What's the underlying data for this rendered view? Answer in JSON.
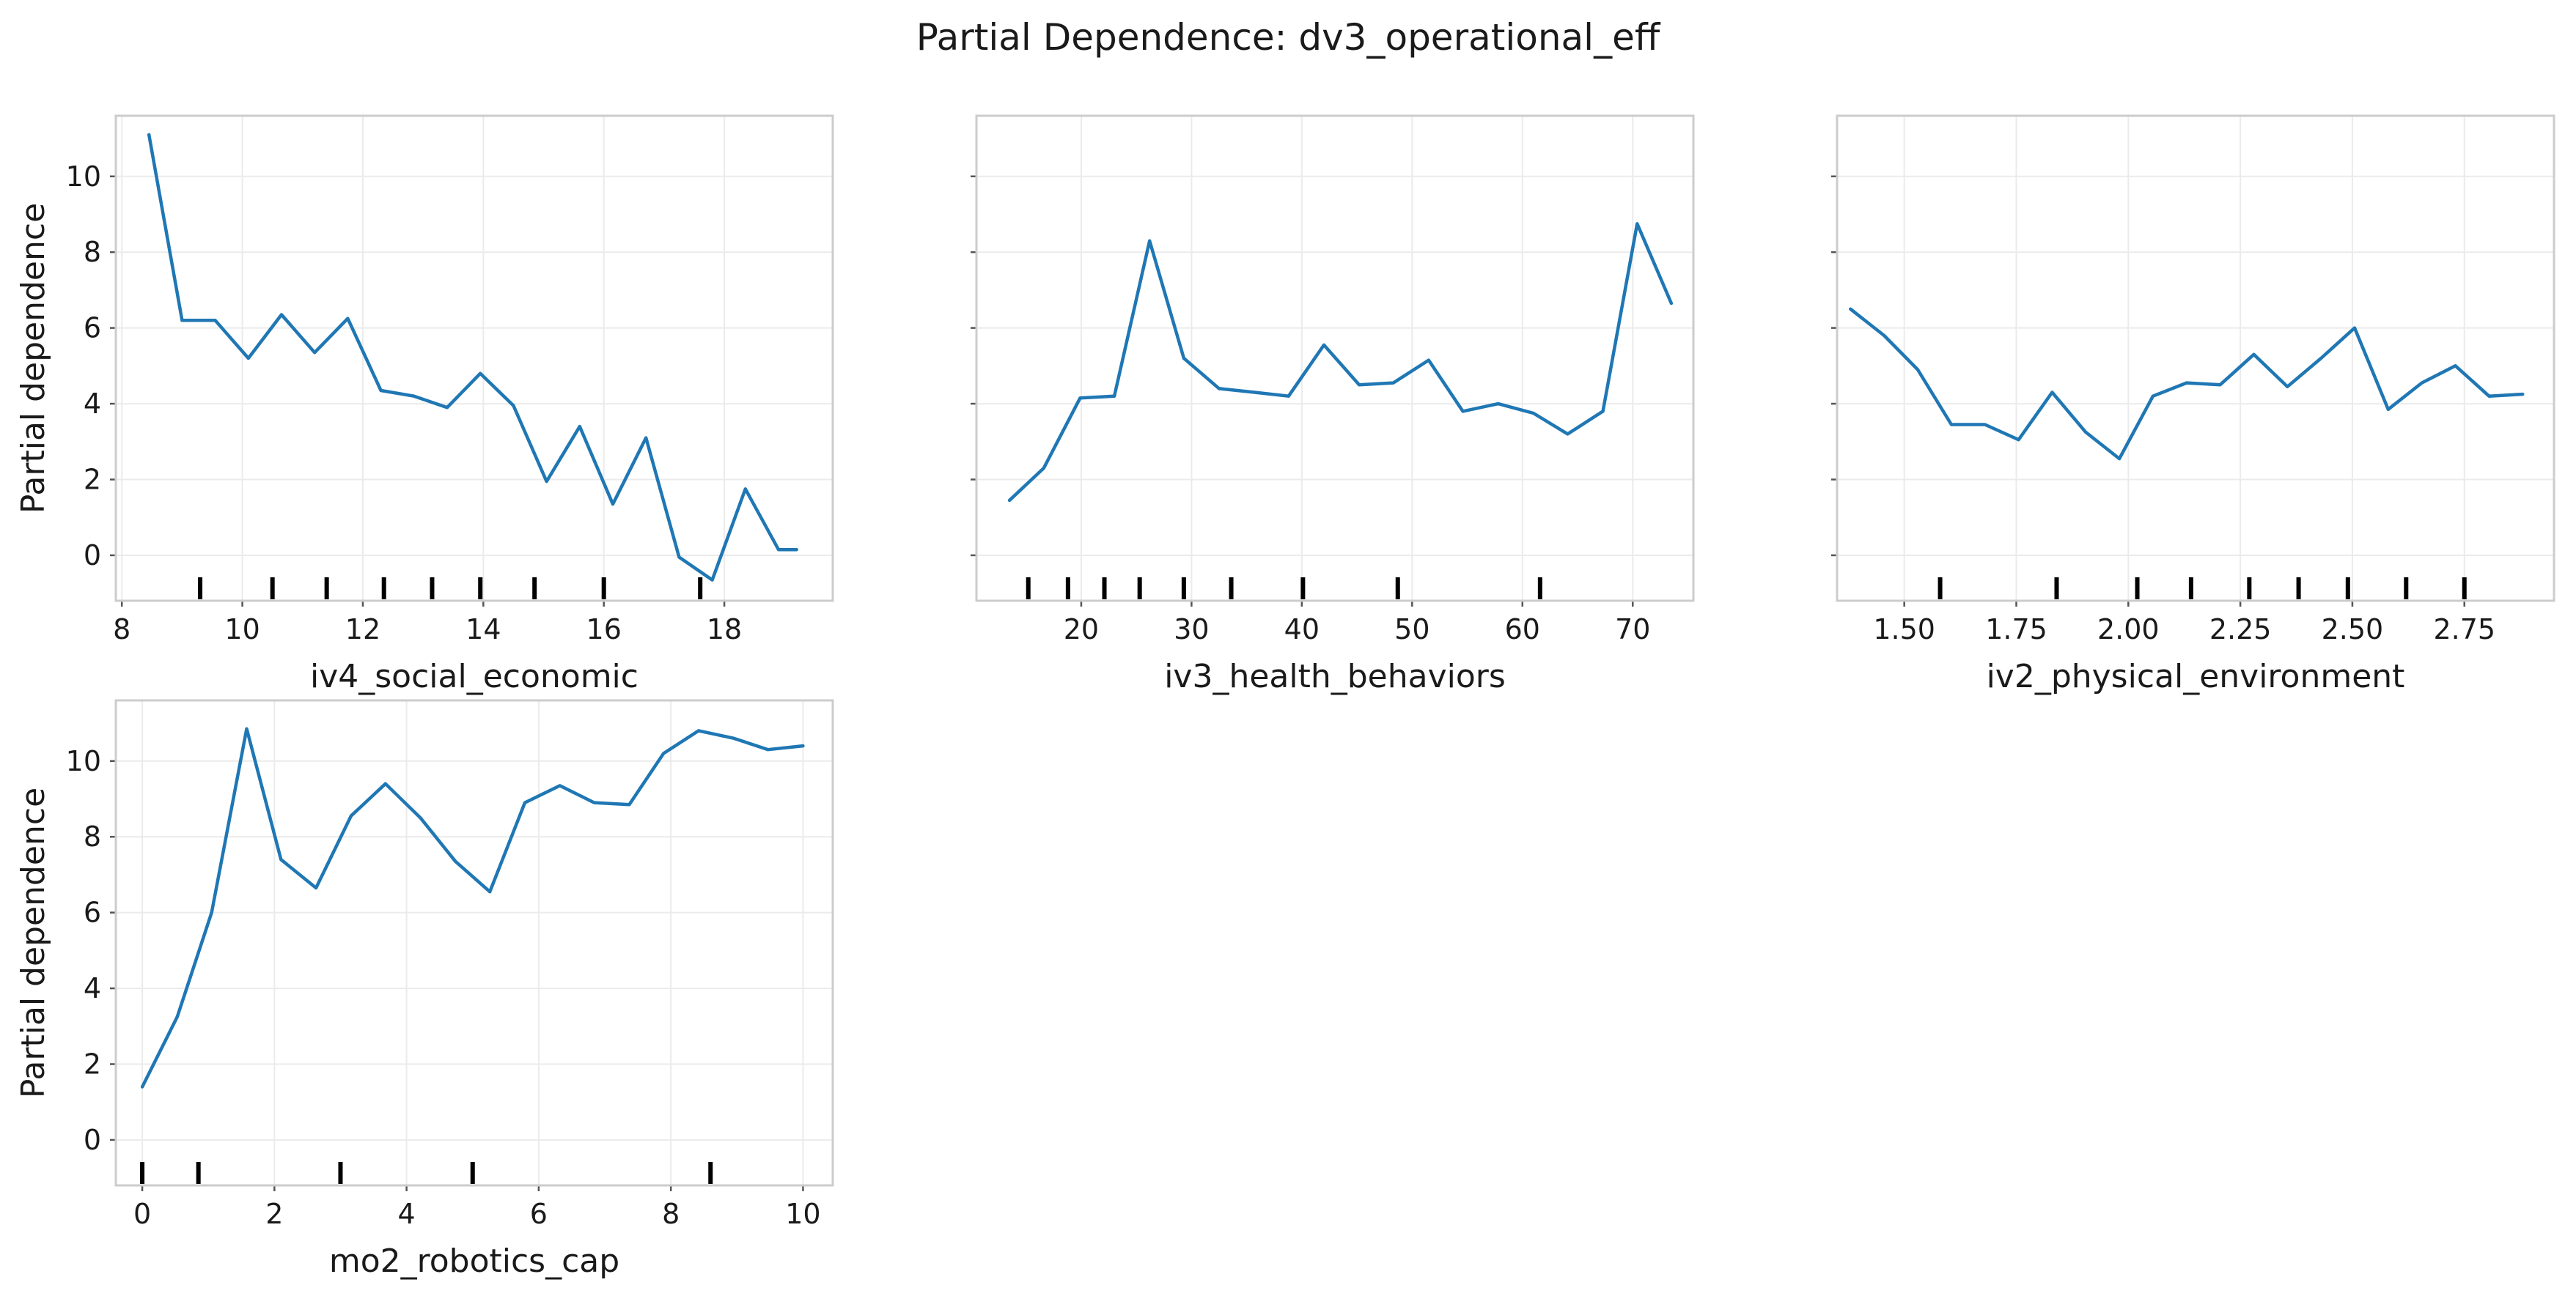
{
  "title": "Partial Dependence: dv3_operational_eff",
  "colors": {
    "line": "#1f77b4",
    "rug": "#000000",
    "grid": "#ebebeb",
    "frame": "#cccccc"
  },
  "chart_data": [
    {
      "type": "line",
      "xlabel": "iv4_social_economic",
      "ylabel": "Partial dependence",
      "xlim": [
        7.9,
        19.8
      ],
      "ylim": [
        -1.2,
        11.6
      ],
      "xticks": [
        8,
        10,
        12,
        14,
        16,
        18
      ],
      "xtick_labels": [
        "8",
        "10",
        "12",
        "14",
        "16",
        "18"
      ],
      "yticks": [
        0,
        2,
        4,
        6,
        8,
        10
      ],
      "ytick_labels": [
        "0",
        "2",
        "4",
        "6",
        "8",
        "10"
      ],
      "show_yticklabels": true,
      "grid": true,
      "x": [
        8.45,
        9.0,
        9.55,
        10.1,
        10.65,
        11.2,
        11.75,
        12.3,
        12.85,
        13.4,
        13.95,
        14.5,
        15.05,
        15.6,
        16.15,
        16.7,
        17.25,
        17.8,
        18.35,
        18.9,
        19.2
      ],
      "y": [
        11.1,
        6.2,
        6.2,
        5.2,
        6.35,
        5.35,
        6.25,
        4.35,
        4.2,
        3.9,
        4.8,
        3.95,
        1.95,
        3.4,
        1.35,
        3.1,
        -0.05,
        -0.65,
        1.75,
        0.15,
        0.15
      ],
      "rug": [
        9.3,
        10.5,
        11.4,
        12.35,
        13.15,
        13.95,
        14.85,
        16.0,
        17.6
      ]
    },
    {
      "type": "line",
      "xlabel": "iv3_health_behaviors",
      "ylabel": "",
      "xlim": [
        10.5,
        75.5
      ],
      "ylim": [
        -1.2,
        11.6
      ],
      "xticks": [
        20,
        30,
        40,
        50,
        60,
        70
      ],
      "xtick_labels": [
        "20",
        "30",
        "40",
        "50",
        "60",
        "70"
      ],
      "yticks": [
        0,
        2,
        4,
        6,
        8,
        10
      ],
      "ytick_labels": [
        "0",
        "2",
        "4",
        "6",
        "8",
        "10"
      ],
      "show_yticklabels": false,
      "grid": true,
      "x": [
        13.5,
        16.6,
        19.9,
        23.0,
        26.2,
        29.3,
        32.5,
        35.7,
        38.8,
        42.0,
        45.2,
        48.3,
        51.5,
        54.6,
        57.8,
        61.0,
        64.1,
        67.3,
        70.4,
        73.5
      ],
      "y": [
        1.45,
        2.3,
        4.15,
        4.2,
        8.3,
        5.2,
        4.4,
        4.3,
        4.2,
        5.55,
        4.5,
        4.55,
        5.15,
        3.8,
        4.0,
        3.75,
        3.2,
        3.8,
        8.75,
        6.65
      ],
      "rug": [
        15.2,
        18.8,
        22.1,
        25.3,
        29.3,
        33.6,
        40.1,
        48.7,
        61.6
      ]
    },
    {
      "type": "line",
      "xlabel": "iv2_physical_environment",
      "ylabel": "",
      "xlim": [
        1.35,
        2.95
      ],
      "ylim": [
        -1.2,
        11.6
      ],
      "xticks": [
        1.5,
        1.75,
        2.0,
        2.25,
        2.5,
        2.75
      ],
      "xtick_labels": [
        "1.50",
        "1.75",
        "2.00",
        "2.25",
        "2.50",
        "2.75"
      ],
      "yticks": [
        0,
        2,
        4,
        6,
        8,
        10
      ],
      "ytick_labels": [
        "0",
        "2",
        "4",
        "6",
        "8",
        "10"
      ],
      "show_yticklabels": false,
      "grid": true,
      "x": [
        1.38,
        1.455,
        1.53,
        1.605,
        1.68,
        1.755,
        1.83,
        1.905,
        1.98,
        2.055,
        2.13,
        2.205,
        2.28,
        2.355,
        2.43,
        2.505,
        2.58,
        2.655,
        2.73,
        2.805,
        2.88
      ],
      "y": [
        6.5,
        5.8,
        4.9,
        3.45,
        3.45,
        3.05,
        4.3,
        3.25,
        2.55,
        4.2,
        4.55,
        4.5,
        5.3,
        4.45,
        5.2,
        6.0,
        3.85,
        4.55,
        5.0,
        4.2,
        4.25
      ],
      "rug": [
        1.58,
        1.84,
        2.02,
        2.14,
        2.27,
        2.38,
        2.49,
        2.62,
        2.75
      ]
    },
    {
      "type": "line",
      "xlabel": "mo2_robotics_cap",
      "ylabel": "Partial dependence",
      "xlim": [
        -0.4,
        10.45
      ],
      "ylim": [
        -1.2,
        11.6
      ],
      "xticks": [
        0,
        2,
        4,
        6,
        8,
        10
      ],
      "xtick_labels": [
        "0",
        "2",
        "4",
        "6",
        "8",
        "10"
      ],
      "yticks": [
        0,
        2,
        4,
        6,
        8,
        10
      ],
      "ytick_labels": [
        "0",
        "2",
        "4",
        "6",
        "8",
        "10"
      ],
      "show_yticklabels": true,
      "grid": true,
      "x": [
        0.0,
        0.53,
        1.05,
        1.58,
        2.1,
        2.63,
        3.16,
        3.68,
        4.21,
        4.74,
        5.26,
        5.79,
        6.32,
        6.84,
        7.37,
        7.89,
        8.42,
        8.95,
        9.47,
        10.0
      ],
      "y": [
        1.4,
        3.25,
        6.0,
        10.85,
        7.4,
        6.65,
        8.55,
        9.4,
        8.5,
        7.35,
        6.55,
        8.9,
        9.35,
        8.9,
        8.85,
        10.2,
        10.8,
        10.6,
        10.3,
        10.4
      ],
      "rug": [
        0.0,
        0.85,
        3.0,
        5.0,
        8.6
      ]
    }
  ]
}
